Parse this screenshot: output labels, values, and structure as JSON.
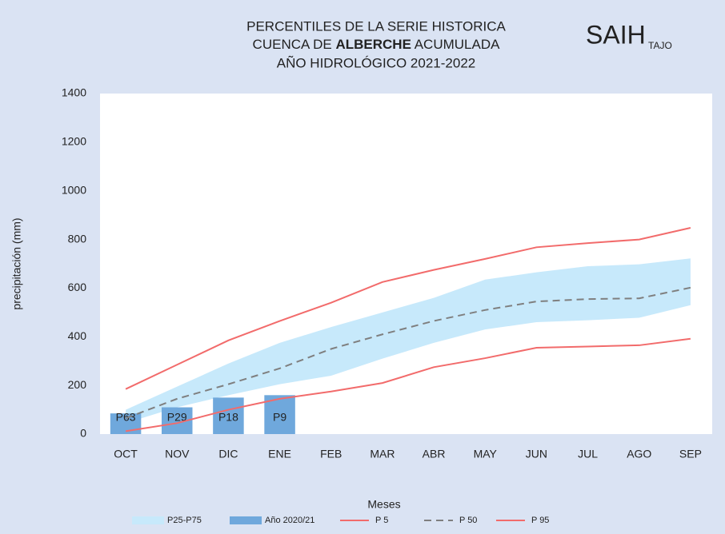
{
  "chart_data": {
    "type": "line",
    "title_line1": "PERCENTILES DE LA SERIE HISTORICA",
    "title_line2_pre": "CUENCA DE ",
    "title_line2_bold": "ALBERCHE",
    "title_line2_post": " ACUMULADA",
    "title_line3": "AÑO HIDROLÓGICO 2021-2022",
    "logo": "SAIH",
    "logo_sub": "TAJO",
    "y_label": "precipitación (mm)",
    "x_label": "Meses",
    "categories": [
      "OCT",
      "NOV",
      "DIC",
      "ENE",
      "FEB",
      "MAR",
      "ABR",
      "MAY",
      "JUN",
      "JUL",
      "AGO",
      "SEP"
    ],
    "ylim": [
      0,
      1400
    ],
    "yticks": [
      0,
      200,
      400,
      600,
      800,
      1000,
      1200,
      1400
    ],
    "series": [
      {
        "name": "P25-P75",
        "style": "band",
        "color": "#c7e9fb",
        "low": [
          45,
          110,
          160,
          205,
          240,
          310,
          375,
          430,
          460,
          468,
          478,
          530
        ],
        "high": [
          100,
          195,
          290,
          375,
          440,
          500,
          560,
          635,
          665,
          690,
          698,
          722
        ]
      },
      {
        "name": "Año 2020/21",
        "style": "bar",
        "color": "#6fa8dc",
        "values": [
          85,
          110,
          150,
          160,
          null,
          null,
          null,
          null,
          null,
          null,
          null,
          null
        ],
        "bar_labels": [
          "P63",
          "P29",
          "P18",
          "P9",
          null,
          null,
          null,
          null,
          null,
          null,
          null,
          null
        ]
      },
      {
        "name": "P 5",
        "style": "line",
        "color": "#f26b6b",
        "values": [
          12,
          45,
          100,
          145,
          175,
          210,
          275,
          312,
          355,
          360,
          365,
          392
        ]
      },
      {
        "name": "P 50",
        "style": "dash",
        "color": "#7f7f7f",
        "values": [
          65,
          145,
          205,
          270,
          350,
          410,
          465,
          510,
          545,
          555,
          558,
          602
        ]
      },
      {
        "name": "P 95",
        "style": "line",
        "color": "#f26b6b",
        "values": [
          185,
          285,
          385,
          465,
          540,
          625,
          675,
          720,
          768,
          785,
          800,
          848
        ]
      }
    ]
  }
}
